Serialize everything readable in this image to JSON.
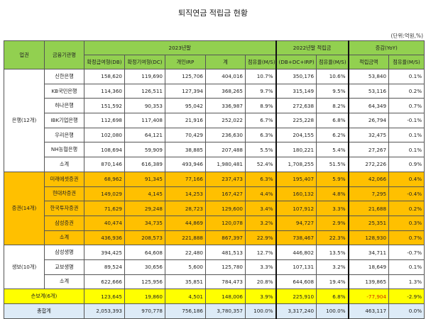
{
  "title": "퇴직연금 적립금 현황",
  "unit": "(단위:억원,%)",
  "header": {
    "sector": "업권",
    "institution": "금융기관명",
    "y2023": "2023년말",
    "y2022": "2022년말 적립금",
    "yoy": "증감(YoY)",
    "db": "확정급여형(DB)",
    "dc": "확정기여형(DC)",
    "irp": "개인IRP",
    "sum": "계",
    "ms": "점유율(M/S)",
    "combined": "(DB+DC+IRP)",
    "ms2022": "점유율(M/S)",
    "amount": "적립금액",
    "ms_yoy": "점유율(M/S)"
  },
  "colors": {
    "header": "#92d050",
    "securities": "#ffc000",
    "nonlife": "#ffff00",
    "total": "#ddebf7",
    "negative": "#d03000"
  },
  "groups": [
    {
      "sector": "은행(12개)",
      "cls": "bank",
      "rows": [
        [
          "신한은행",
          "158,620",
          "119,690",
          "125,706",
          "404,016",
          "10.7%",
          "350,176",
          "10.6%",
          "53,840",
          "0.1%"
        ],
        [
          "KB국민은행",
          "114,360",
          "126,511",
          "127,394",
          "368,265",
          "9.7%",
          "315,149",
          "9.5%",
          "53,116",
          "0.2%"
        ],
        [
          "하나은행",
          "151,592",
          "90,353",
          "95,042",
          "336,987",
          "8.9%",
          "272,638",
          "8.2%",
          "64,349",
          "0.7%"
        ],
        [
          "IBK기업은행",
          "112,698",
          "117,408",
          "21,916",
          "252,022",
          "6.7%",
          "225,228",
          "6.8%",
          "26,794",
          "-0.1%"
        ],
        [
          "우리은행",
          "102,080",
          "64,121",
          "70,429",
          "236,630",
          "6.3%",
          "204,155",
          "6.2%",
          "32,475",
          "0.1%"
        ],
        [
          "NH농협은행",
          "108,694",
          "59,909",
          "38,885",
          "207,488",
          "5.5%",
          "180,221",
          "5.4%",
          "27,267",
          "0.1%"
        ],
        [
          "소계",
          "870,146",
          "616,389",
          "493,946",
          "1,980,481",
          "52.4%",
          "1,708,255",
          "51.5%",
          "272,226",
          "0.9%"
        ]
      ]
    },
    {
      "sector": "증권(14개)",
      "cls": "sec",
      "rows": [
        [
          "미래에셋증권",
          "68,962",
          "91,345",
          "77,166",
          "237,473",
          "6.3%",
          "195,407",
          "5.9%",
          "42,066",
          "0.4%"
        ],
        [
          "현대차증권",
          "149,029",
          "4,145",
          "14,253",
          "167,427",
          "4.4%",
          "160,132",
          "4.8%",
          "7,295",
          "-0.4%"
        ],
        [
          "한국투자증권",
          "71,629",
          "29,248",
          "28,723",
          "129,600",
          "3.4%",
          "107,912",
          "3.3%",
          "21,688",
          "0.2%"
        ],
        [
          "삼성증권",
          "40,474",
          "34,735",
          "44,869",
          "120,078",
          "3.2%",
          "94,727",
          "2.9%",
          "25,351",
          "0.3%"
        ],
        [
          "소계",
          "436,936",
          "208,573",
          "221,888",
          "867,397",
          "22.9%",
          "738,467",
          "22.3%",
          "128,930",
          "0.7%"
        ]
      ]
    },
    {
      "sector": "생보(10개)",
      "cls": "life",
      "rows": [
        [
          "삼성생명",
          "394,425",
          "64,608",
          "22,480",
          "481,513",
          "12.7%",
          "446,802",
          "13.5%",
          "34,711",
          "-0.7%"
        ],
        [
          "교보생명",
          "89,524",
          "30,656",
          "5,600",
          "125,780",
          "3.3%",
          "107,131",
          "3.2%",
          "18,649",
          "0.1%"
        ],
        [
          "소계",
          "622,666",
          "125,956",
          "35,851",
          "784,473",
          "20.8%",
          "644,608",
          "19.4%",
          "139,865",
          "1.3%"
        ]
      ]
    }
  ],
  "nonlife": [
    "손보계(6개)",
    "123,645",
    "19,860",
    "4,501",
    "148,006",
    "3.9%",
    "225,910",
    "6.8%",
    "-77,904",
    "-2.9%"
  ],
  "total": [
    "총합계",
    "2,053,393",
    "970,778",
    "756,186",
    "3,780,357",
    "100.0%",
    "3,317,240",
    "100.0%",
    "463,117",
    "0.0%"
  ]
}
